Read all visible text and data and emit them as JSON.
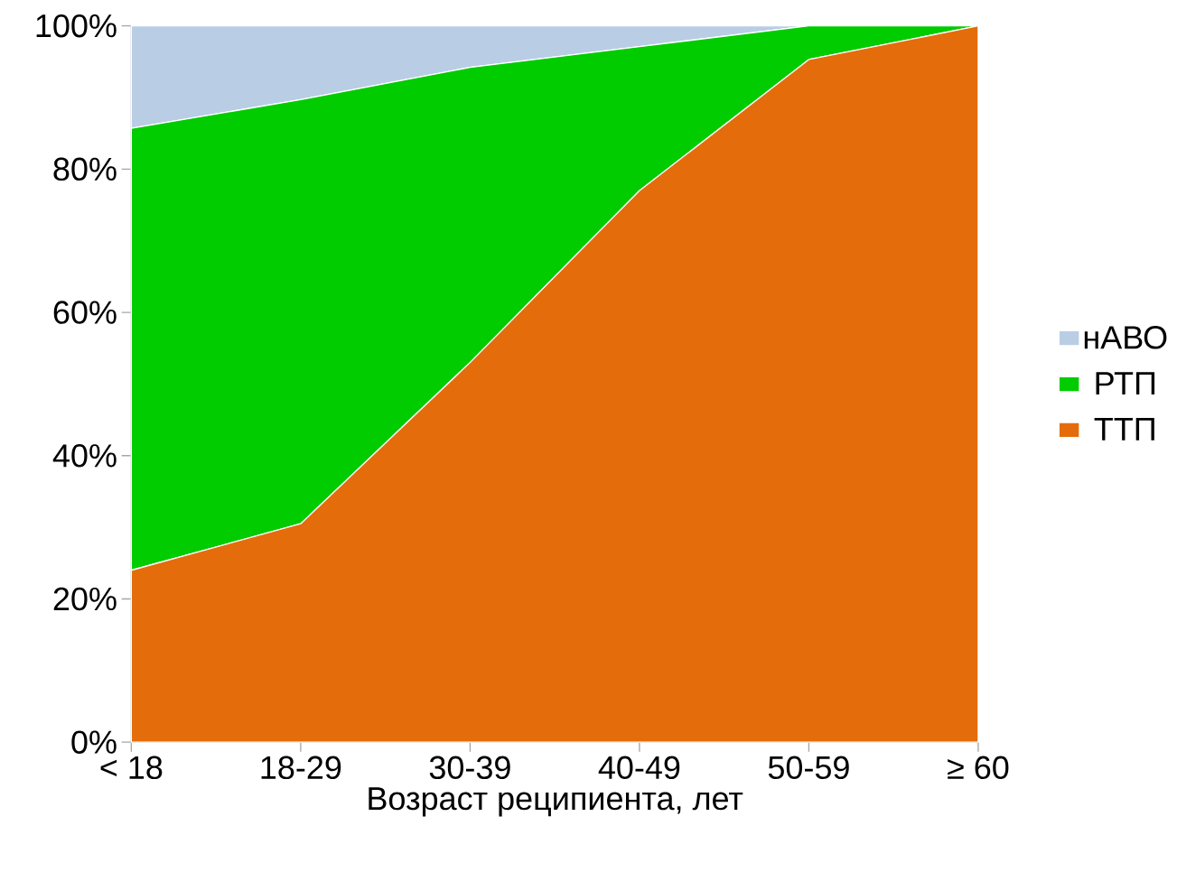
{
  "chart_data": {
    "type": "area",
    "stacked": true,
    "xlabel": "Возраст реципиента, лет",
    "categories": [
      "< 18",
      "18-29",
      "30-39",
      "40-49",
      "50-59",
      "≥ 60"
    ],
    "series": [
      {
        "name": "ТТП",
        "color": "#e46c0a",
        "values": [
          24,
          30.5,
          53,
          77,
          95.3,
          100
        ]
      },
      {
        "name": "РТП",
        "color": "#00cc00",
        "values": [
          61.7,
          59.2,
          41.2,
          20.1,
          4.7,
          0
        ]
      },
      {
        "name": "нАВО",
        "color": "#b9cde5",
        "values": [
          14.3,
          10.3,
          5.8,
          2.9,
          0,
          0
        ]
      }
    ],
    "ylim": [
      0,
      100
    ],
    "yticks": [
      {
        "value": 0,
        "label": "0%"
      },
      {
        "value": 20,
        "label": "20%"
      },
      {
        "value": 40,
        "label": "40%"
      },
      {
        "value": 60,
        "label": "60%"
      },
      {
        "value": 80,
        "label": "80%"
      },
      {
        "value": 100,
        "label": "100%"
      }
    ],
    "legend": "right"
  }
}
